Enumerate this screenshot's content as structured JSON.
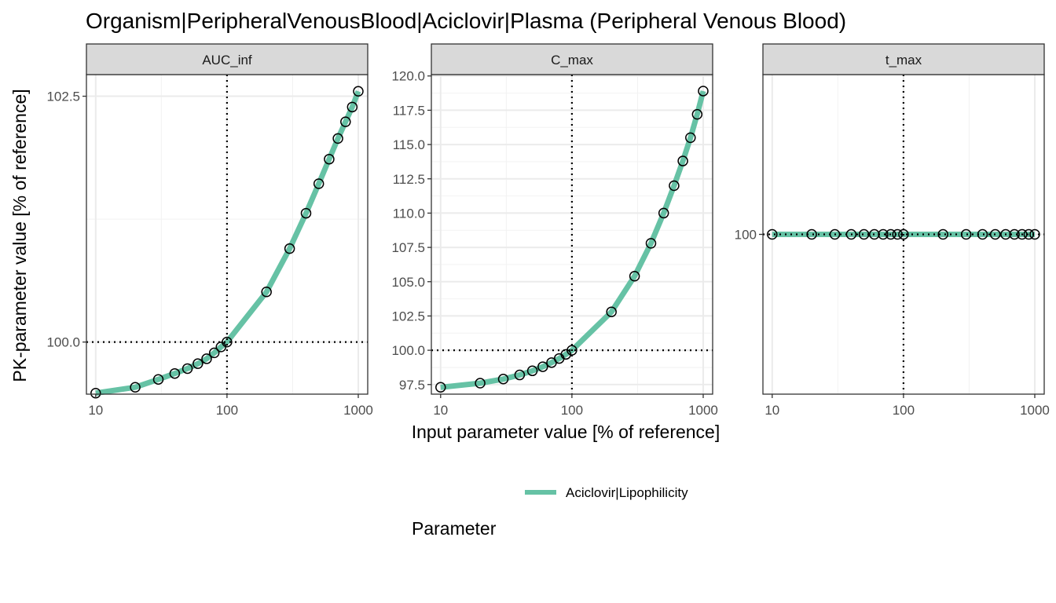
{
  "chart_data": {
    "type": "line",
    "title": "Organism|PeripheralVenousBlood|Aciclovir|Plasma (Peripheral Venous Blood)",
    "xlabel": "Input parameter value [% of reference]",
    "ylabel": "PK-parameter value [% of reference]",
    "x_scale": "log10",
    "x_ticks": [
      10,
      100,
      1000
    ],
    "x_tick_labels": [
      "10",
      "100",
      "1000"
    ],
    "xlim": [
      8.5,
      1180
    ],
    "reference_x": 100,
    "reference_y": 100,
    "grid": true,
    "legend": {
      "title": "Parameter",
      "placement": "bottom"
    },
    "panels": [
      {
        "name": "AUC_inf",
        "ylim": [
          99.47,
          102.72
        ],
        "y_ticks": [
          100.0,
          102.5
        ],
        "y_tick_labels": [
          "100.0",
          "102.5"
        ],
        "series": [
          {
            "name": "Aciclovir|Lipophilicity",
            "color": "#66c2a5",
            "x": [
              10,
              20,
              30,
              40,
              50,
              60,
              70,
              80,
              90,
              100,
              200,
              300,
              400,
              500,
              600,
              700,
              800,
              900,
              1000
            ],
            "y": [
              99.48,
              99.54,
              99.62,
              99.68,
              99.73,
              99.78,
              99.83,
              99.89,
              99.95,
              100.0,
              100.51,
              100.95,
              101.31,
              101.61,
              101.86,
              102.07,
              102.24,
              102.39,
              102.55
            ]
          }
        ]
      },
      {
        "name": "C_max",
        "ylim": [
          96.8,
          120.1
        ],
        "y_ticks": [
          97.5,
          100.0,
          102.5,
          105.0,
          107.5,
          110.0,
          112.5,
          115.0,
          117.5,
          120.0
        ],
        "y_tick_labels": [
          "97.5",
          "100.0",
          "102.5",
          "105.0",
          "107.5",
          "110.0",
          "112.5",
          "115.0",
          "117.5",
          "120.0"
        ],
        "series": [
          {
            "name": "Aciclovir|Lipophilicity",
            "color": "#66c2a5",
            "x": [
              10,
              20,
              30,
              40,
              50,
              60,
              70,
              80,
              90,
              100,
              200,
              300,
              400,
              500,
              600,
              700,
              800,
              900,
              1000
            ],
            "y": [
              97.3,
              97.6,
              97.9,
              98.2,
              98.5,
              98.8,
              99.1,
              99.4,
              99.7,
              100.0,
              102.8,
              105.4,
              107.8,
              110.0,
              112.0,
              113.8,
              115.5,
              117.2,
              118.9
            ]
          }
        ]
      },
      {
        "name": "t_max",
        "ylim": [
          98,
          102
        ],
        "y_ticks": [
          100
        ],
        "y_tick_labels": [
          "100"
        ],
        "series": [
          {
            "name": "Aciclovir|Lipophilicity",
            "color": "#66c2a5",
            "x": [
              10,
              20,
              30,
              40,
              50,
              60,
              70,
              80,
              90,
              100,
              200,
              300,
              400,
              500,
              600,
              700,
              800,
              900,
              1000
            ],
            "y": [
              100,
              100,
              100,
              100,
              100,
              100,
              100,
              100,
              100,
              100,
              100,
              100,
              100,
              100,
              100,
              100,
              100,
              100,
              100
            ]
          }
        ]
      }
    ]
  }
}
